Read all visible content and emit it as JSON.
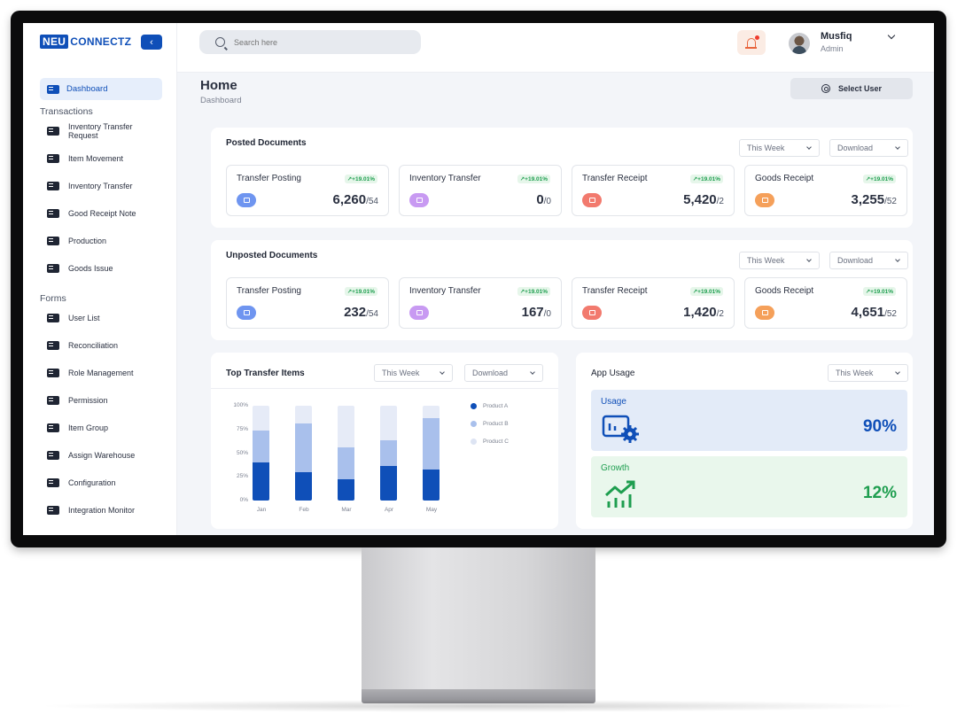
{
  "brand": {
    "logo_part1": "NEU",
    "logo_part2": "CONNECTZ"
  },
  "sidebar": {
    "active": "Dashboard",
    "transactions_title": "Transactions",
    "transactions": [
      "Inventory Transfer Request",
      "Item Movement",
      "Inventory Transfer",
      "Good Receipt Note",
      "Production",
      "Goods Issue"
    ],
    "forms_title": "Forms",
    "forms": [
      "User List",
      "Reconciliation",
      "Role Management",
      "Permission",
      "Item Group",
      "Assign Warehouse",
      "Configuration",
      "Integration Monitor"
    ]
  },
  "header": {
    "search_placeholder": "Search here",
    "user_name": "Musfiq",
    "user_role": "Admin"
  },
  "page": {
    "title": "Home",
    "breadcrumb": "Dashboard",
    "select_user": "Select User"
  },
  "posted": {
    "title": "Posted Documents",
    "filter": "This Week",
    "download": "Download",
    "cards": [
      {
        "label": "Transfer Posting",
        "badge": "+19.01%",
        "value": "6,260",
        "sub": "/54",
        "color": "#6f95f0"
      },
      {
        "label": "Inventory Transfer",
        "badge": "+19.01%",
        "value": "0",
        "sub": "/0",
        "color": "#c89af2"
      },
      {
        "label": "Transfer Receipt",
        "badge": "+19.01%",
        "value": "5,420",
        "sub": "/2",
        "color": "#f27a6e"
      },
      {
        "label": "Goods Receipt",
        "badge": "+19.01%",
        "value": "3,255",
        "sub": "/52",
        "color": "#f5a05a"
      }
    ]
  },
  "unposted": {
    "title": "Unposted Documents",
    "filter": "This Week",
    "download": "Download",
    "cards": [
      {
        "label": "Transfer Posting",
        "badge": "+19.01%",
        "value": "232",
        "sub": "/54",
        "color": "#6f95f0"
      },
      {
        "label": "Inventory Transfer",
        "badge": "+19.01%",
        "value": "167",
        "sub": "/0",
        "color": "#c89af2"
      },
      {
        "label": "Transfer Receipt",
        "badge": "+19.01%",
        "value": "1,420",
        "sub": "/2",
        "color": "#f27a6e"
      },
      {
        "label": "Goods Receipt",
        "badge": "+19.01%",
        "value": "4,651",
        "sub": "/52",
        "color": "#f5a05a"
      }
    ]
  },
  "top_transfer": {
    "title": "Top Transfer Items",
    "filter": "This Week",
    "download": "Download"
  },
  "chart_data": {
    "type": "bar",
    "stacked": true,
    "categories": [
      "Jan",
      "Feb",
      "Mar",
      "Apr",
      "May"
    ],
    "yticks": [
      "100%",
      "75%",
      "50%",
      "25%",
      "0%"
    ],
    "ylim": [
      0,
      100
    ],
    "series": [
      {
        "name": "Product A",
        "values": [
          40,
          30,
          22,
          36,
          33
        ],
        "color": "#0f4fb8"
      },
      {
        "name": "Product B",
        "values": [
          34,
          51,
          34,
          28,
          54
        ],
        "color": "#a9c0ec"
      },
      {
        "name": "Product C",
        "values": [
          26,
          19,
          44,
          36,
          13
        ],
        "color": "#e6ebf7"
      }
    ],
    "legend": "right",
    "grid": false
  },
  "app_usage": {
    "title": "App Usage",
    "filter": "This Week",
    "usage_label": "Usage",
    "usage_value": "90%",
    "growth_label": "Growth",
    "growth_value": "12%"
  }
}
